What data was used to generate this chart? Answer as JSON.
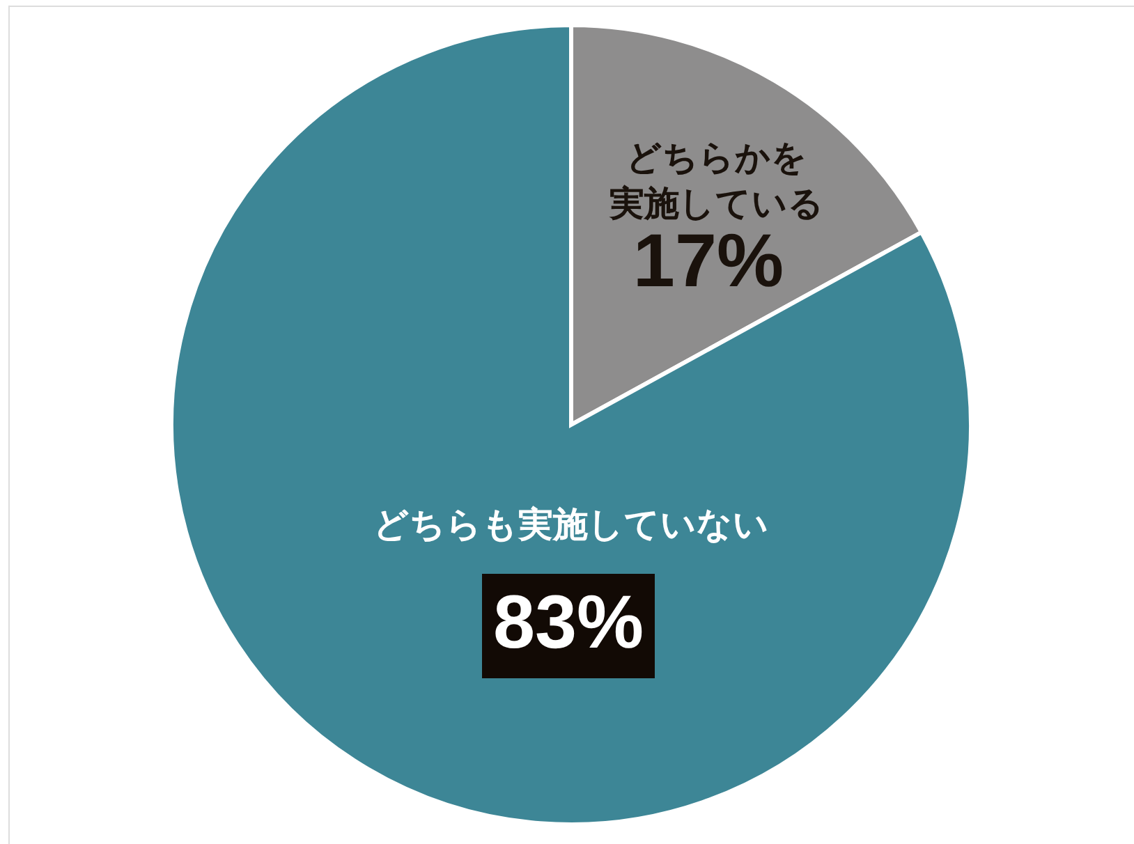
{
  "chart_data": {
    "type": "pie",
    "categories": [
      "どちらかを実施している",
      "どちらも実施していない"
    ],
    "values": [
      17,
      83
    ],
    "colors": [
      "#8e8d8d",
      "#3d8696"
    ],
    "value_labels": [
      "17%",
      "83%"
    ]
  }
}
